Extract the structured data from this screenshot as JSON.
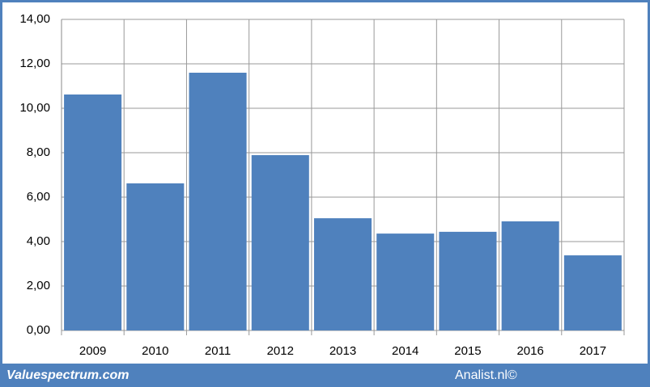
{
  "chart_data": {
    "type": "bar",
    "categories": [
      "2009",
      "2010",
      "2011",
      "2012",
      "2013",
      "2014",
      "2015",
      "2016",
      "2017"
    ],
    "values": [
      10.62,
      6.62,
      11.6,
      7.89,
      5.05,
      4.36,
      4.44,
      4.91,
      3.38
    ],
    "color": "#4f81bd",
    "ylim": [
      0,
      14
    ],
    "yticks": [
      {
        "value": 0,
        "label": "0,00"
      },
      {
        "value": 2,
        "label": "2,00"
      },
      {
        "value": 4,
        "label": "4,00"
      },
      {
        "value": 6,
        "label": "6,00"
      },
      {
        "value": 8,
        "label": "8,00"
      },
      {
        "value": 10,
        "label": "10,00"
      },
      {
        "value": 12,
        "label": "12,00"
      },
      {
        "value": 14,
        "label": "14,00"
      }
    ],
    "grid": true
  },
  "footer": {
    "left": "Valuespectrum.com",
    "right": "Analist.nl©"
  }
}
